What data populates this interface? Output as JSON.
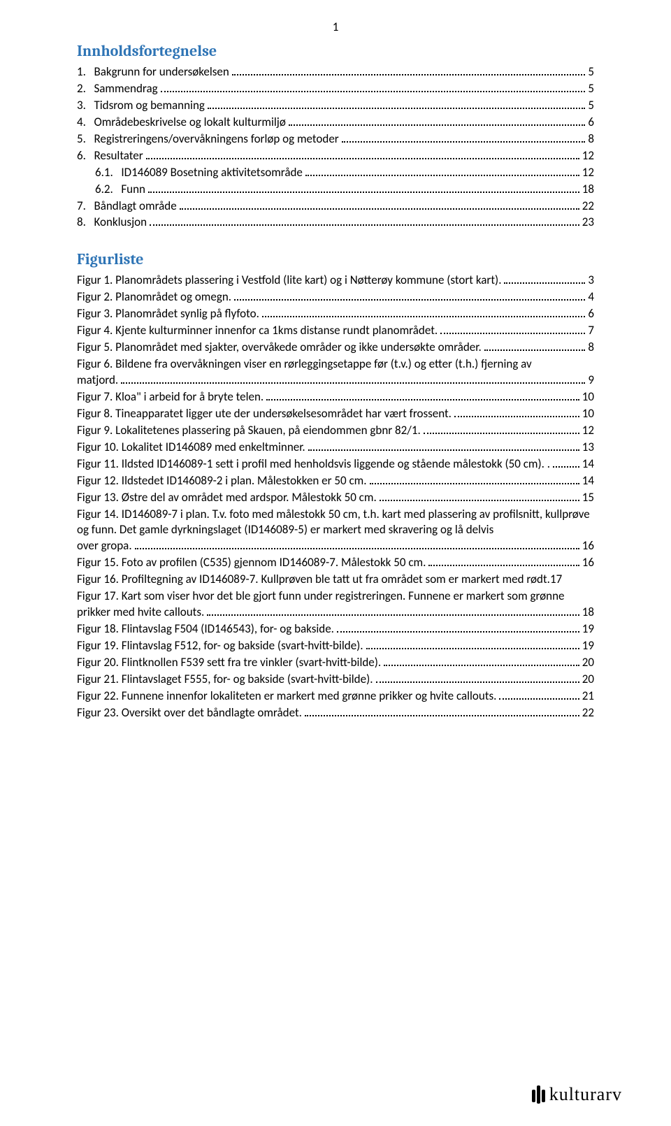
{
  "page_number": "1",
  "titles": {
    "toc": "Innholdsfortegnelse",
    "figlist": "Figurliste"
  },
  "title_color": "#2e74b5",
  "logo_text": "kulturarv",
  "toc": [
    {
      "num": "1.",
      "label": "Bakgrunn for undersøkelsen",
      "page": "5",
      "indent": 0
    },
    {
      "num": "2.",
      "label": "Sammendrag",
      "page": "5",
      "indent": 0
    },
    {
      "num": "3.",
      "label": "Tidsrom og bemanning",
      "page": "5",
      "indent": 0
    },
    {
      "num": "4.",
      "label": "Områdebeskrivelse og lokalt kulturmiljø",
      "page": "6",
      "indent": 0
    },
    {
      "num": "5.",
      "label": "Registreringens/overvåkningens forløp og metoder",
      "page": "8",
      "indent": 0
    },
    {
      "num": "6.",
      "label": "Resultater",
      "page": "12",
      "indent": 0
    },
    {
      "num": "6.1.",
      "label": "ID146089 Bosetning aktivitetsområde",
      "page": "12",
      "indent": 1
    },
    {
      "num": "6.2.",
      "label": "Funn",
      "page": "18",
      "indent": 1
    },
    {
      "num": "7.",
      "label": "Båndlagt område",
      "page": "22",
      "indent": 0
    },
    {
      "num": "8.",
      "label": "Konklusjon",
      "page": "23",
      "indent": 0
    }
  ],
  "figures": [
    {
      "label": "Figur 1. Planområdets plassering i Vestfold (lite kart) og i Nøtterøy kommune (stort kart).",
      "page": "3"
    },
    {
      "label": "Figur 2. Planområdet og omegn.",
      "page": "4"
    },
    {
      "label": "Figur 3. Planområdet synlig på flyfoto.",
      "page": "6"
    },
    {
      "label": "Figur 4. Kjente kulturminner innenfor ca 1kms distanse rundt planområdet.",
      "page": "7"
    },
    {
      "label": "Figur 5. Planområdet med sjakter, overvåkede områder og ikke undersøkte områder.",
      "page": "8"
    },
    {
      "pre": "Figur 6. Bildene fra overvåkningen viser en rørleggingsetappe før (t.v.) og etter (t.h.) fjerning av",
      "tail": "matjord.",
      "page": "9"
    },
    {
      "label": "Figur 7. Kloa\" i arbeid for å bryte telen.",
      "page": "10"
    },
    {
      "label": "Figur 8. Tineapparatet ligger ute der undersøkelsesområdet har vært frossent.",
      "page": "10"
    },
    {
      "label": "Figur 9. Lokalitetenes plassering på Skauen, på eiendommen gbnr 82/1.",
      "page": "12"
    },
    {
      "label": "Figur 10. Lokalitet ID146089 med enkeltminner.",
      "page": "13"
    },
    {
      "label": "Figur 11. Ildsted ID146089-1 sett i profil med henholdsvis liggende og stående målestokk (50 cm). .",
      "page": "14"
    },
    {
      "label": "Figur 12. Ildstedet ID146089-2 i plan. Målestokken er 50 cm.",
      "page": "14"
    },
    {
      "label": "Figur 13. Østre del av området med ardspor. Målestokk 50 cm.",
      "page": "15"
    },
    {
      "pre": "Figur 14. ID146089-7 i plan. T.v. foto med målestokk 50 cm, t.h. kart med plassering av profilsnitt, kullprøve og funn. Det gamle dyrkningslaget (ID146089-5) er markert med skravering og lå delvis",
      "tail": "over gropa.",
      "page": "16"
    },
    {
      "label": "Figur 15. Foto av profilen (C535) gjennom ID146089-7. Målestokk 50 cm.",
      "page": "16"
    },
    {
      "label": "Figur 16. Profiltegning av ID146089-7. Kullprøven ble tatt ut fra området som er markert med rødt.",
      "page": "17",
      "tight": true
    },
    {
      "pre": "Figur 17. Kart som viser hvor det ble gjort funn under registreringen. Funnene er markert som grønne",
      "tail": "prikker med hvite callouts.",
      "page": "18"
    },
    {
      "label": "Figur 18. Flintavslag F504 (ID146543), for- og bakside.",
      "page": "19"
    },
    {
      "label": "Figur 19. Flintavslag F512, for- og bakside (svart-hvitt-bilde).",
      "page": "19"
    },
    {
      "label": "Figur 20. Flintknollen F539 sett fra tre vinkler (svart-hvitt-bilde).",
      "page": "20"
    },
    {
      "label": "Figur 21. Flintavslaget F555, for- og bakside (svart-hvitt-bilde).",
      "page": "20"
    },
    {
      "label": "Figur 22. Funnene innenfor lokaliteten er markert med grønne prikker og hvite callouts.",
      "page": "21"
    },
    {
      "label": "Figur 23. Oversikt over det båndlagte området.",
      "page": "22"
    }
  ]
}
